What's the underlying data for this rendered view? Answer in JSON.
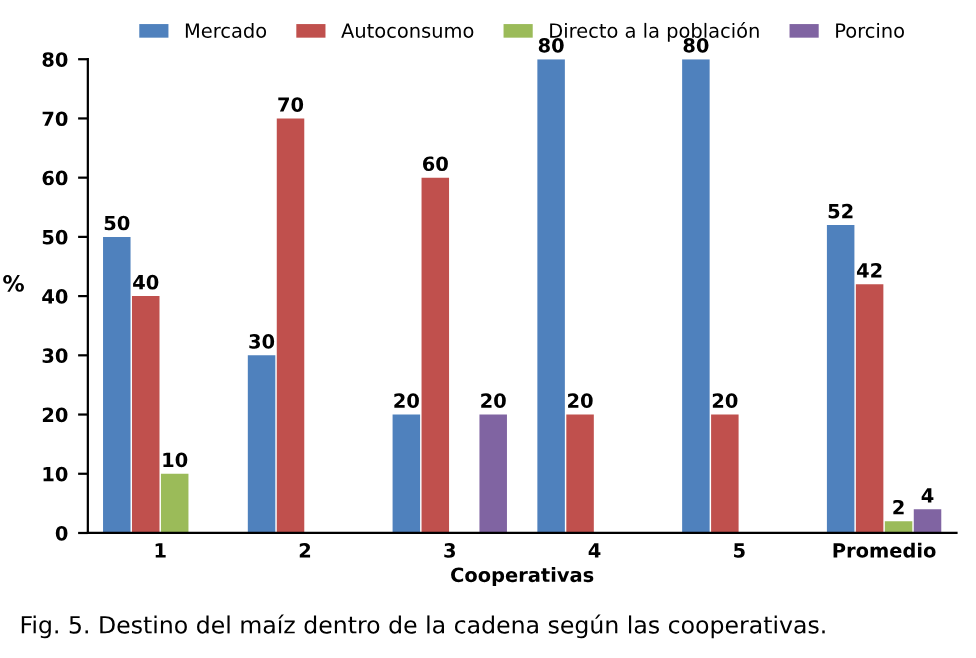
{
  "chart_data": {
    "type": "bar",
    "xlabel": "Cooperativas",
    "ylabel": "%",
    "categories": [
      "1",
      "2",
      "3",
      "4",
      "5",
      "Promedio"
    ],
    "series": [
      {
        "name": "Mercado",
        "color": "#4f81bd",
        "values": [
          50,
          30,
          20,
          80,
          80,
          52
        ]
      },
      {
        "name": "Autoconsumo",
        "color": "#c0504d",
        "values": [
          40,
          70,
          60,
          20,
          20,
          42
        ]
      },
      {
        "name": "Directo a la población",
        "color": "#9bbb59",
        "values": [
          10,
          null,
          null,
          null,
          null,
          2
        ]
      },
      {
        "name": "Porcino",
        "color": "#8064a2",
        "values": [
          null,
          null,
          20,
          null,
          null,
          4
        ]
      }
    ],
    "ylim": [
      0,
      80
    ],
    "yticks": [
      0,
      10,
      20,
      30,
      40,
      50,
      60,
      70,
      80
    ],
    "grid": false,
    "legend": "top",
    "data_labels": true,
    "annotations": [
      "Fig. 5. Destino del maíz dentro de la cadena según las cooperativas."
    ]
  }
}
